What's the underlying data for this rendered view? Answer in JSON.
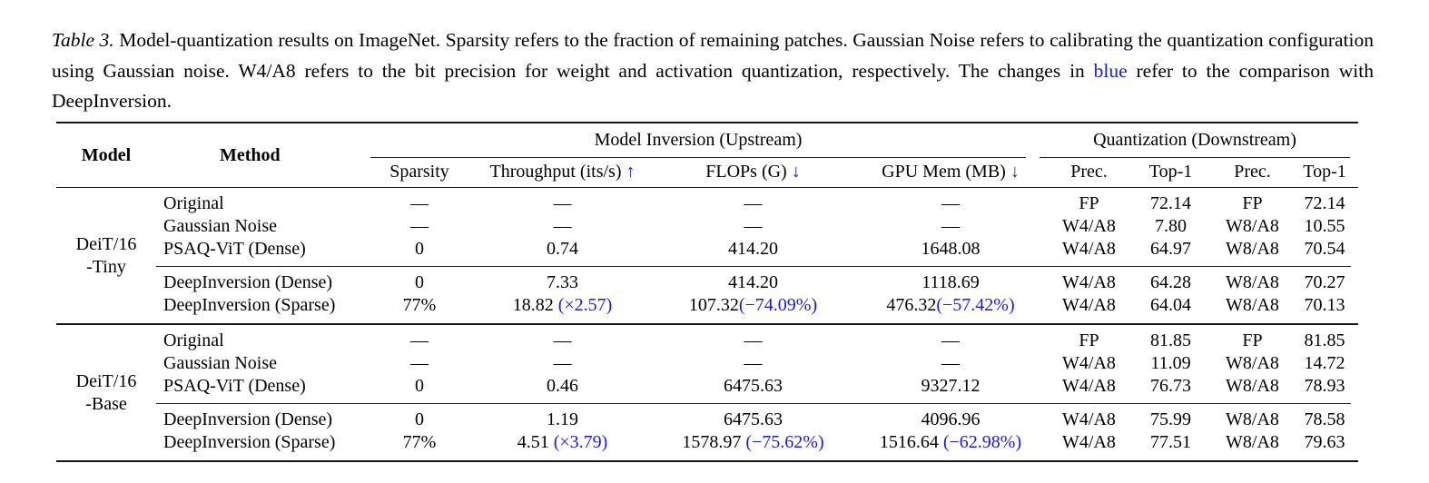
{
  "colors": {
    "accent_blue": "#1a1ae0",
    "text": "#000000",
    "rule": "#151515"
  },
  "caption": {
    "label": "Table 3.",
    "body1": " Model-quantization results on ImageNet. Sparsity refers to the fraction of remaining patches. Gaussian Noise refers to calibrating the quantization configuration using Gaussian noise. W4/A8 refers to the bit precision for weight and activation quantization, respectively. The changes in ",
    "blue_word": "blue",
    "body2": " refer to the comparison with DeepInversion."
  },
  "table": {
    "headers": {
      "model": "Model",
      "method": "Method",
      "upstream": "Model Inversion (Upstream)",
      "downstream": "Quantization (Downstream)",
      "sparsity": "Sparsity",
      "throughput": "Throughput (its/s)",
      "throughput_arrow": "↑",
      "flops": "FLOPs (G)",
      "flops_arrow": "↓",
      "gpumem": "GPU Mem (MB)",
      "gpumem_arrow": "↓",
      "prec1": "Prec.",
      "top1a": "Top-1",
      "prec2": "Prec.",
      "top1b": "Top-1"
    },
    "groups": [
      {
        "model_line1": "DeiT/16",
        "model_line2": "-Tiny",
        "rows": [
          {
            "method": "Original",
            "sparsity": "—",
            "thr": "—",
            "thr_note": "",
            "flops": "—",
            "flops_note": "",
            "gpu": "—",
            "gpu_note": "",
            "prec_a": "FP",
            "top1_a": "72.14",
            "prec_b": "FP",
            "top1_b": "72.14"
          },
          {
            "method": "Gaussian Noise",
            "sparsity": "—",
            "thr": "—",
            "thr_note": "",
            "flops": "—",
            "flops_note": "",
            "gpu": "—",
            "gpu_note": "",
            "prec_a": "W4/A8",
            "top1_a": "7.80",
            "prec_b": "W8/A8",
            "top1_b": "10.55"
          },
          {
            "method": "PSAQ-ViT (Dense)",
            "sparsity": "0",
            "thr": "0.74",
            "thr_note": "",
            "flops": "414.20",
            "flops_note": "",
            "gpu": "1648.08",
            "gpu_note": "",
            "prec_a": "W4/A8",
            "top1_a": "64.97",
            "prec_b": "W8/A8",
            "top1_b": "70.54"
          },
          {
            "method": "DeepInversion (Dense)",
            "sparsity": "0",
            "thr": "7.33",
            "thr_note": "",
            "flops": "414.20",
            "flops_note": "",
            "gpu": "1118.69",
            "gpu_note": "",
            "prec_a": "W4/A8",
            "top1_a": "64.28",
            "prec_b": "W8/A8",
            "top1_b": "70.27"
          },
          {
            "method": "DeepInversion (Sparse)",
            "sparsity": "77%",
            "thr": "18.82",
            "thr_note": " (×2.57)",
            "flops": "107.32",
            "flops_note": "(−74.09%)",
            "gpu": "476.32",
            "gpu_note": "(−57.42%)",
            "prec_a": "W4/A8",
            "top1_a": "64.04",
            "prec_b": "W8/A8",
            "top1_b": "70.13"
          }
        ]
      },
      {
        "model_line1": "DeiT/16",
        "model_line2": "-Base",
        "rows": [
          {
            "method": "Original",
            "sparsity": "—",
            "thr": "—",
            "thr_note": "",
            "flops": "—",
            "flops_note": "",
            "gpu": "—",
            "gpu_note": "",
            "prec_a": "FP",
            "top1_a": "81.85",
            "prec_b": "FP",
            "top1_b": "81.85"
          },
          {
            "method": "Gaussian Noise",
            "sparsity": "—",
            "thr": "—",
            "thr_note": "",
            "flops": "—",
            "flops_note": "",
            "gpu": "—",
            "gpu_note": "",
            "prec_a": "W4/A8",
            "top1_a": "11.09",
            "prec_b": "W8/A8",
            "top1_b": "14.72"
          },
          {
            "method": "PSAQ-ViT (Dense)",
            "sparsity": "0",
            "thr": "0.46",
            "thr_note": "",
            "flops": "6475.63",
            "flops_note": "",
            "gpu": "9327.12",
            "gpu_note": "",
            "prec_a": "W4/A8",
            "top1_a": "76.73",
            "prec_b": "W8/A8",
            "top1_b": "78.93"
          },
          {
            "method": "DeepInversion (Dense)",
            "sparsity": "0",
            "thr": "1.19",
            "thr_note": "",
            "flops": "6475.63",
            "flops_note": "",
            "gpu": "4096.96",
            "gpu_note": "",
            "prec_a": "W4/A8",
            "top1_a": "75.99",
            "prec_b": "W8/A8",
            "top1_b": "78.58"
          },
          {
            "method": "DeepInversion (Sparse)",
            "sparsity": "77%",
            "thr": "4.51",
            "thr_note": " (×3.79)",
            "flops": "1578.97",
            "flops_note": " (−75.62%)",
            "gpu": "1516.64",
            "gpu_note": " (−62.98%)",
            "prec_a": "W4/A8",
            "top1_a": "77.51",
            "prec_b": "W8/A8",
            "top1_b": "79.63"
          }
        ]
      }
    ]
  }
}
